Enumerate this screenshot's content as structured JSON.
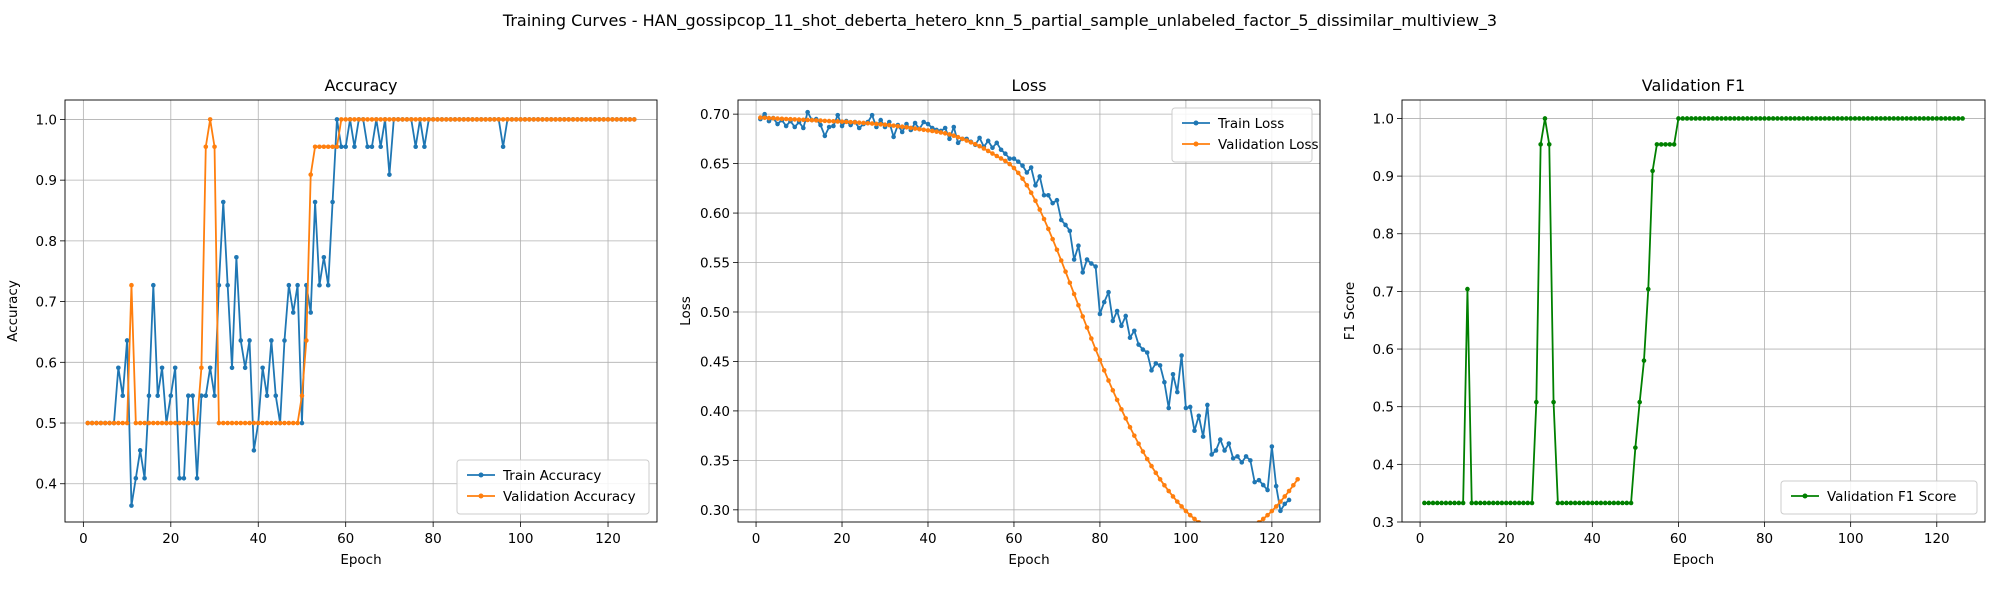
{
  "figure": {
    "suptitle": "Training Curves - HAN_gossipcop_11_shot_deberta_hetero_knn_5_partial_sample_unlabeled_factor_5_dissimilar_multiview_3"
  },
  "colors": {
    "blue": "#1f77b4",
    "orange": "#ff7f0e",
    "green": "#008000",
    "grid": "#b0b0b0"
  },
  "chart_data": [
    {
      "type": "line",
      "title": "Accuracy",
      "xlabel": "Epoch",
      "ylabel": "Accuracy",
      "xlim": [
        -4.2,
        131.2
      ],
      "ylim": [
        0.337,
        1.032
      ],
      "xticks": [
        0,
        20,
        40,
        60,
        80,
        100,
        120
      ],
      "yticks": [
        0.4,
        0.5,
        0.6,
        0.7,
        0.8,
        0.9,
        1.0
      ],
      "ytick_labels": [
        "0.4",
        "0.5",
        "0.6",
        "0.7",
        "0.8",
        "0.9",
        "1.0"
      ],
      "grid": true,
      "legend_position": "lower-right",
      "series": [
        {
          "name": "Train Accuracy",
          "color": "#1f77b4",
          "values": [
            0.5,
            0.5,
            0.5,
            0.5,
            0.5,
            0.5,
            0.5,
            0.591,
            0.545,
            0.636,
            0.364,
            0.409,
            0.455,
            0.409,
            0.545,
            0.727,
            0.545,
            0.591,
            0.5,
            0.545,
            0.591,
            0.409,
            0.409,
            0.545,
            0.545,
            0.409,
            0.545,
            0.545,
            0.591,
            0.545,
            0.727,
            0.864,
            0.727,
            0.591,
            0.773,
            0.636,
            0.591,
            0.636,
            0.455,
            0.5,
            0.591,
            0.545,
            0.636,
            0.545,
            0.5,
            0.636,
            0.727,
            0.682,
            0.727,
            0.5,
            0.727,
            0.682,
            0.864,
            0.727,
            0.773,
            0.727,
            0.864,
            1.0,
            0.955,
            0.955,
            1.0,
            0.955,
            1.0,
            1.0,
            0.955,
            0.955,
            1.0,
            0.955,
            1.0,
            0.909,
            1.0,
            1.0,
            1.0,
            1.0,
            1.0,
            0.955,
            1.0,
            0.955,
            1.0,
            1.0,
            1.0,
            1.0,
            1.0,
            1.0,
            1.0,
            1.0,
            1.0,
            1.0,
            1.0,
            1.0,
            1.0,
            1.0,
            1.0,
            1.0,
            1.0,
            0.955,
            1.0,
            1.0,
            1.0,
            1.0,
            1.0,
            1.0,
            1.0,
            1.0,
            1.0,
            1.0,
            1.0,
            1.0,
            1.0,
            1.0,
            1.0,
            1.0,
            1.0,
            1.0,
            1.0,
            1.0,
            1.0,
            1.0,
            1.0,
            1.0,
            1.0,
            1.0,
            1.0,
            1.0,
            1.0,
            1.0
          ]
        },
        {
          "name": "Validation Accuracy",
          "color": "#ff7f0e",
          "values": [
            0.5,
            0.5,
            0.5,
            0.5,
            0.5,
            0.5,
            0.5,
            0.5,
            0.5,
            0.5,
            0.727,
            0.5,
            0.5,
            0.5,
            0.5,
            0.5,
            0.5,
            0.5,
            0.5,
            0.5,
            0.5,
            0.5,
            0.5,
            0.5,
            0.5,
            0.5,
            0.591,
            0.955,
            1.0,
            0.955,
            0.5,
            0.5,
            0.5,
            0.5,
            0.5,
            0.5,
            0.5,
            0.5,
            0.5,
            0.5,
            0.5,
            0.5,
            0.5,
            0.5,
            0.5,
            0.5,
            0.5,
            0.5,
            0.5,
            0.545,
            0.636,
            0.909,
            0.955,
            0.955,
            0.955,
            0.955,
            0.955,
            0.955,
            1.0,
            1.0,
            1.0,
            1.0,
            1.0,
            1.0,
            1.0,
            1.0,
            1.0,
            1.0,
            1.0,
            1.0,
            1.0,
            1.0,
            1.0,
            1.0,
            1.0,
            1.0,
            1.0,
            1.0,
            1.0,
            1.0,
            1.0,
            1.0,
            1.0,
            1.0,
            1.0,
            1.0,
            1.0,
            1.0,
            1.0,
            1.0,
            1.0,
            1.0,
            1.0,
            1.0,
            1.0,
            1.0,
            1.0,
            1.0,
            1.0,
            1.0,
            1.0,
            1.0,
            1.0,
            1.0,
            1.0,
            1.0,
            1.0,
            1.0,
            1.0,
            1.0,
            1.0,
            1.0,
            1.0,
            1.0,
            1.0,
            1.0,
            1.0,
            1.0,
            1.0,
            1.0,
            1.0,
            1.0,
            1.0,
            1.0,
            1.0,
            1.0
          ]
        }
      ]
    },
    {
      "type": "line",
      "title": "Loss",
      "xlabel": "Epoch",
      "ylabel": "Loss",
      "xlim": [
        -4.2,
        131.2
      ],
      "ylim": [
        0.2877,
        0.7143
      ],
      "xticks": [
        0,
        20,
        40,
        60,
        80,
        100,
        120
      ],
      "yticks": [
        0.3,
        0.35,
        0.4,
        0.45,
        0.5,
        0.55,
        0.6,
        0.65,
        0.7
      ],
      "ytick_labels": [
        "0.30",
        "0.35",
        "0.40",
        "0.45",
        "0.50",
        "0.55",
        "0.60",
        "0.65",
        "0.70"
      ],
      "grid": true,
      "legend_position": "top-right",
      "series": [
        {
          "name": "Train Loss",
          "color": "#1f77b4",
          "values": [
            0.695,
            0.7,
            0.693,
            0.696,
            0.69,
            0.694,
            0.688,
            0.693,
            0.687,
            0.692,
            0.686,
            0.702,
            0.694,
            0.695,
            0.689,
            0.678,
            0.687,
            0.688,
            0.699,
            0.688,
            0.693,
            0.689,
            0.692,
            0.686,
            0.69,
            0.692,
            0.699,
            0.687,
            0.694,
            0.687,
            0.692,
            0.677,
            0.689,
            0.682,
            0.69,
            0.684,
            0.691,
            0.685,
            0.692,
            0.69,
            0.686,
            0.684,
            0.683,
            0.686,
            0.675,
            0.687,
            0.671,
            0.675,
            0.675,
            0.672,
            0.669,
            0.676,
            0.667,
            0.673,
            0.666,
            0.671,
            0.664,
            0.66,
            0.655,
            0.655,
            0.652,
            0.648,
            0.641,
            0.646,
            0.628,
            0.637,
            0.618,
            0.618,
            0.61,
            0.613,
            0.593,
            0.588,
            0.582,
            0.553,
            0.567,
            0.54,
            0.553,
            0.549,
            0.546,
            0.498,
            0.51,
            0.52,
            0.491,
            0.501,
            0.486,
            0.496,
            0.474,
            0.481,
            0.467,
            0.462,
            0.459,
            0.441,
            0.448,
            0.446,
            0.429,
            0.403,
            0.437,
            0.419,
            0.456,
            0.403,
            0.404,
            0.38,
            0.395,
            0.374,
            0.406,
            0.356,
            0.36,
            0.371,
            0.36,
            0.367,
            0.352,
            0.354,
            0.348,
            0.354,
            0.35,
            0.328,
            0.33,
            0.325,
            0.32,
            0.364,
            0.324,
            0.299,
            0.306,
            0.31
          ]
        },
        {
          "name": "Validation Loss",
          "color": "#ff7f0e",
          "values": [
            0.6965,
            0.6963,
            0.696,
            0.6958,
            0.6955,
            0.6953,
            0.6951,
            0.6949,
            0.6947,
            0.6945,
            0.6943,
            0.6941,
            0.6939,
            0.6937,
            0.6935,
            0.6932,
            0.693,
            0.6928,
            0.6926,
            0.6924,
            0.6922,
            0.6919,
            0.6917,
            0.6914,
            0.6911,
            0.6908,
            0.6905,
            0.6901,
            0.6897,
            0.6893,
            0.6889,
            0.6884,
            0.6878,
            0.6873,
            0.6867,
            0.6861,
            0.6854,
            0.6848,
            0.6842,
            0.6836,
            0.683,
            0.6823,
            0.6815,
            0.6806,
            0.6795,
            0.6782,
            0.6767,
            0.675,
            0.6733,
            0.6715,
            0.6696,
            0.6676,
            0.6653,
            0.6628,
            0.6602,
            0.6577,
            0.6552,
            0.6527,
            0.6495,
            0.6455,
            0.6406,
            0.6348,
            0.6281,
            0.6206,
            0.6124,
            0.6035,
            0.594,
            0.584,
            0.5736,
            0.5629,
            0.552,
            0.5408,
            0.5295,
            0.5182,
            0.5068,
            0.4955,
            0.4843,
            0.4732,
            0.4623,
            0.4516,
            0.441,
            0.4307,
            0.4208,
            0.4111,
            0.4016,
            0.3924,
            0.3835,
            0.375,
            0.3668,
            0.3589,
            0.3514,
            0.3442,
            0.3374,
            0.3309,
            0.3248,
            0.319,
            0.3135,
            0.3083,
            0.3034,
            0.2988,
            0.2946,
            0.2908,
            0.2874,
            0.2845,
            0.282,
            0.28,
            0.2784,
            0.2773,
            0.2766,
            0.2764,
            0.2766,
            0.2773,
            0.2784,
            0.28,
            0.282,
            0.2845,
            0.2874,
            0.2908,
            0.2946,
            0.2988,
            0.3034,
            0.3083,
            0.3135,
            0.319,
            0.3248,
            0.3309
          ]
        }
      ]
    },
    {
      "type": "line",
      "title": "Validation F1",
      "xlabel": "Epoch",
      "ylabel": "F1 Score",
      "xlim": [
        -4.2,
        131.2
      ],
      "ylim": [
        0.3,
        1.032
      ],
      "xticks": [
        0,
        20,
        40,
        60,
        80,
        100,
        120
      ],
      "yticks": [
        0.3,
        0.4,
        0.5,
        0.6,
        0.7,
        0.8,
        0.9,
        1.0
      ],
      "ytick_labels": [
        "0.3",
        "0.4",
        "0.5",
        "0.6",
        "0.7",
        "0.8",
        "0.9",
        "1.0"
      ],
      "grid": true,
      "legend_position": "lower-right",
      "series": [
        {
          "name": "Validation F1 Score",
          "color": "#008000",
          "values": [
            0.333,
            0.333,
            0.333,
            0.333,
            0.333,
            0.333,
            0.333,
            0.333,
            0.333,
            0.333,
            0.704,
            0.333,
            0.333,
            0.333,
            0.333,
            0.333,
            0.333,
            0.333,
            0.333,
            0.333,
            0.333,
            0.333,
            0.333,
            0.333,
            0.333,
            0.333,
            0.508,
            0.955,
            1.0,
            0.955,
            0.508,
            0.333,
            0.333,
            0.333,
            0.333,
            0.333,
            0.333,
            0.333,
            0.333,
            0.333,
            0.333,
            0.333,
            0.333,
            0.333,
            0.333,
            0.333,
            0.333,
            0.333,
            0.333,
            0.429,
            0.508,
            0.58,
            0.704,
            0.909,
            0.955,
            0.955,
            0.955,
            0.955,
            0.955,
            1.0,
            1.0,
            1.0,
            1.0,
            1.0,
            1.0,
            1.0,
            1.0,
            1.0,
            1.0,
            1.0,
            1.0,
            1.0,
            1.0,
            1.0,
            1.0,
            1.0,
            1.0,
            1.0,
            1.0,
            1.0,
            1.0,
            1.0,
            1.0,
            1.0,
            1.0,
            1.0,
            1.0,
            1.0,
            1.0,
            1.0,
            1.0,
            1.0,
            1.0,
            1.0,
            1.0,
            1.0,
            1.0,
            1.0,
            1.0,
            1.0,
            1.0,
            1.0,
            1.0,
            1.0,
            1.0,
            1.0,
            1.0,
            1.0,
            1.0,
            1.0,
            1.0,
            1.0,
            1.0,
            1.0,
            1.0,
            1.0,
            1.0,
            1.0,
            1.0,
            1.0,
            1.0,
            1.0,
            1.0,
            1.0,
            1.0,
            1.0
          ]
        }
      ]
    }
  ]
}
